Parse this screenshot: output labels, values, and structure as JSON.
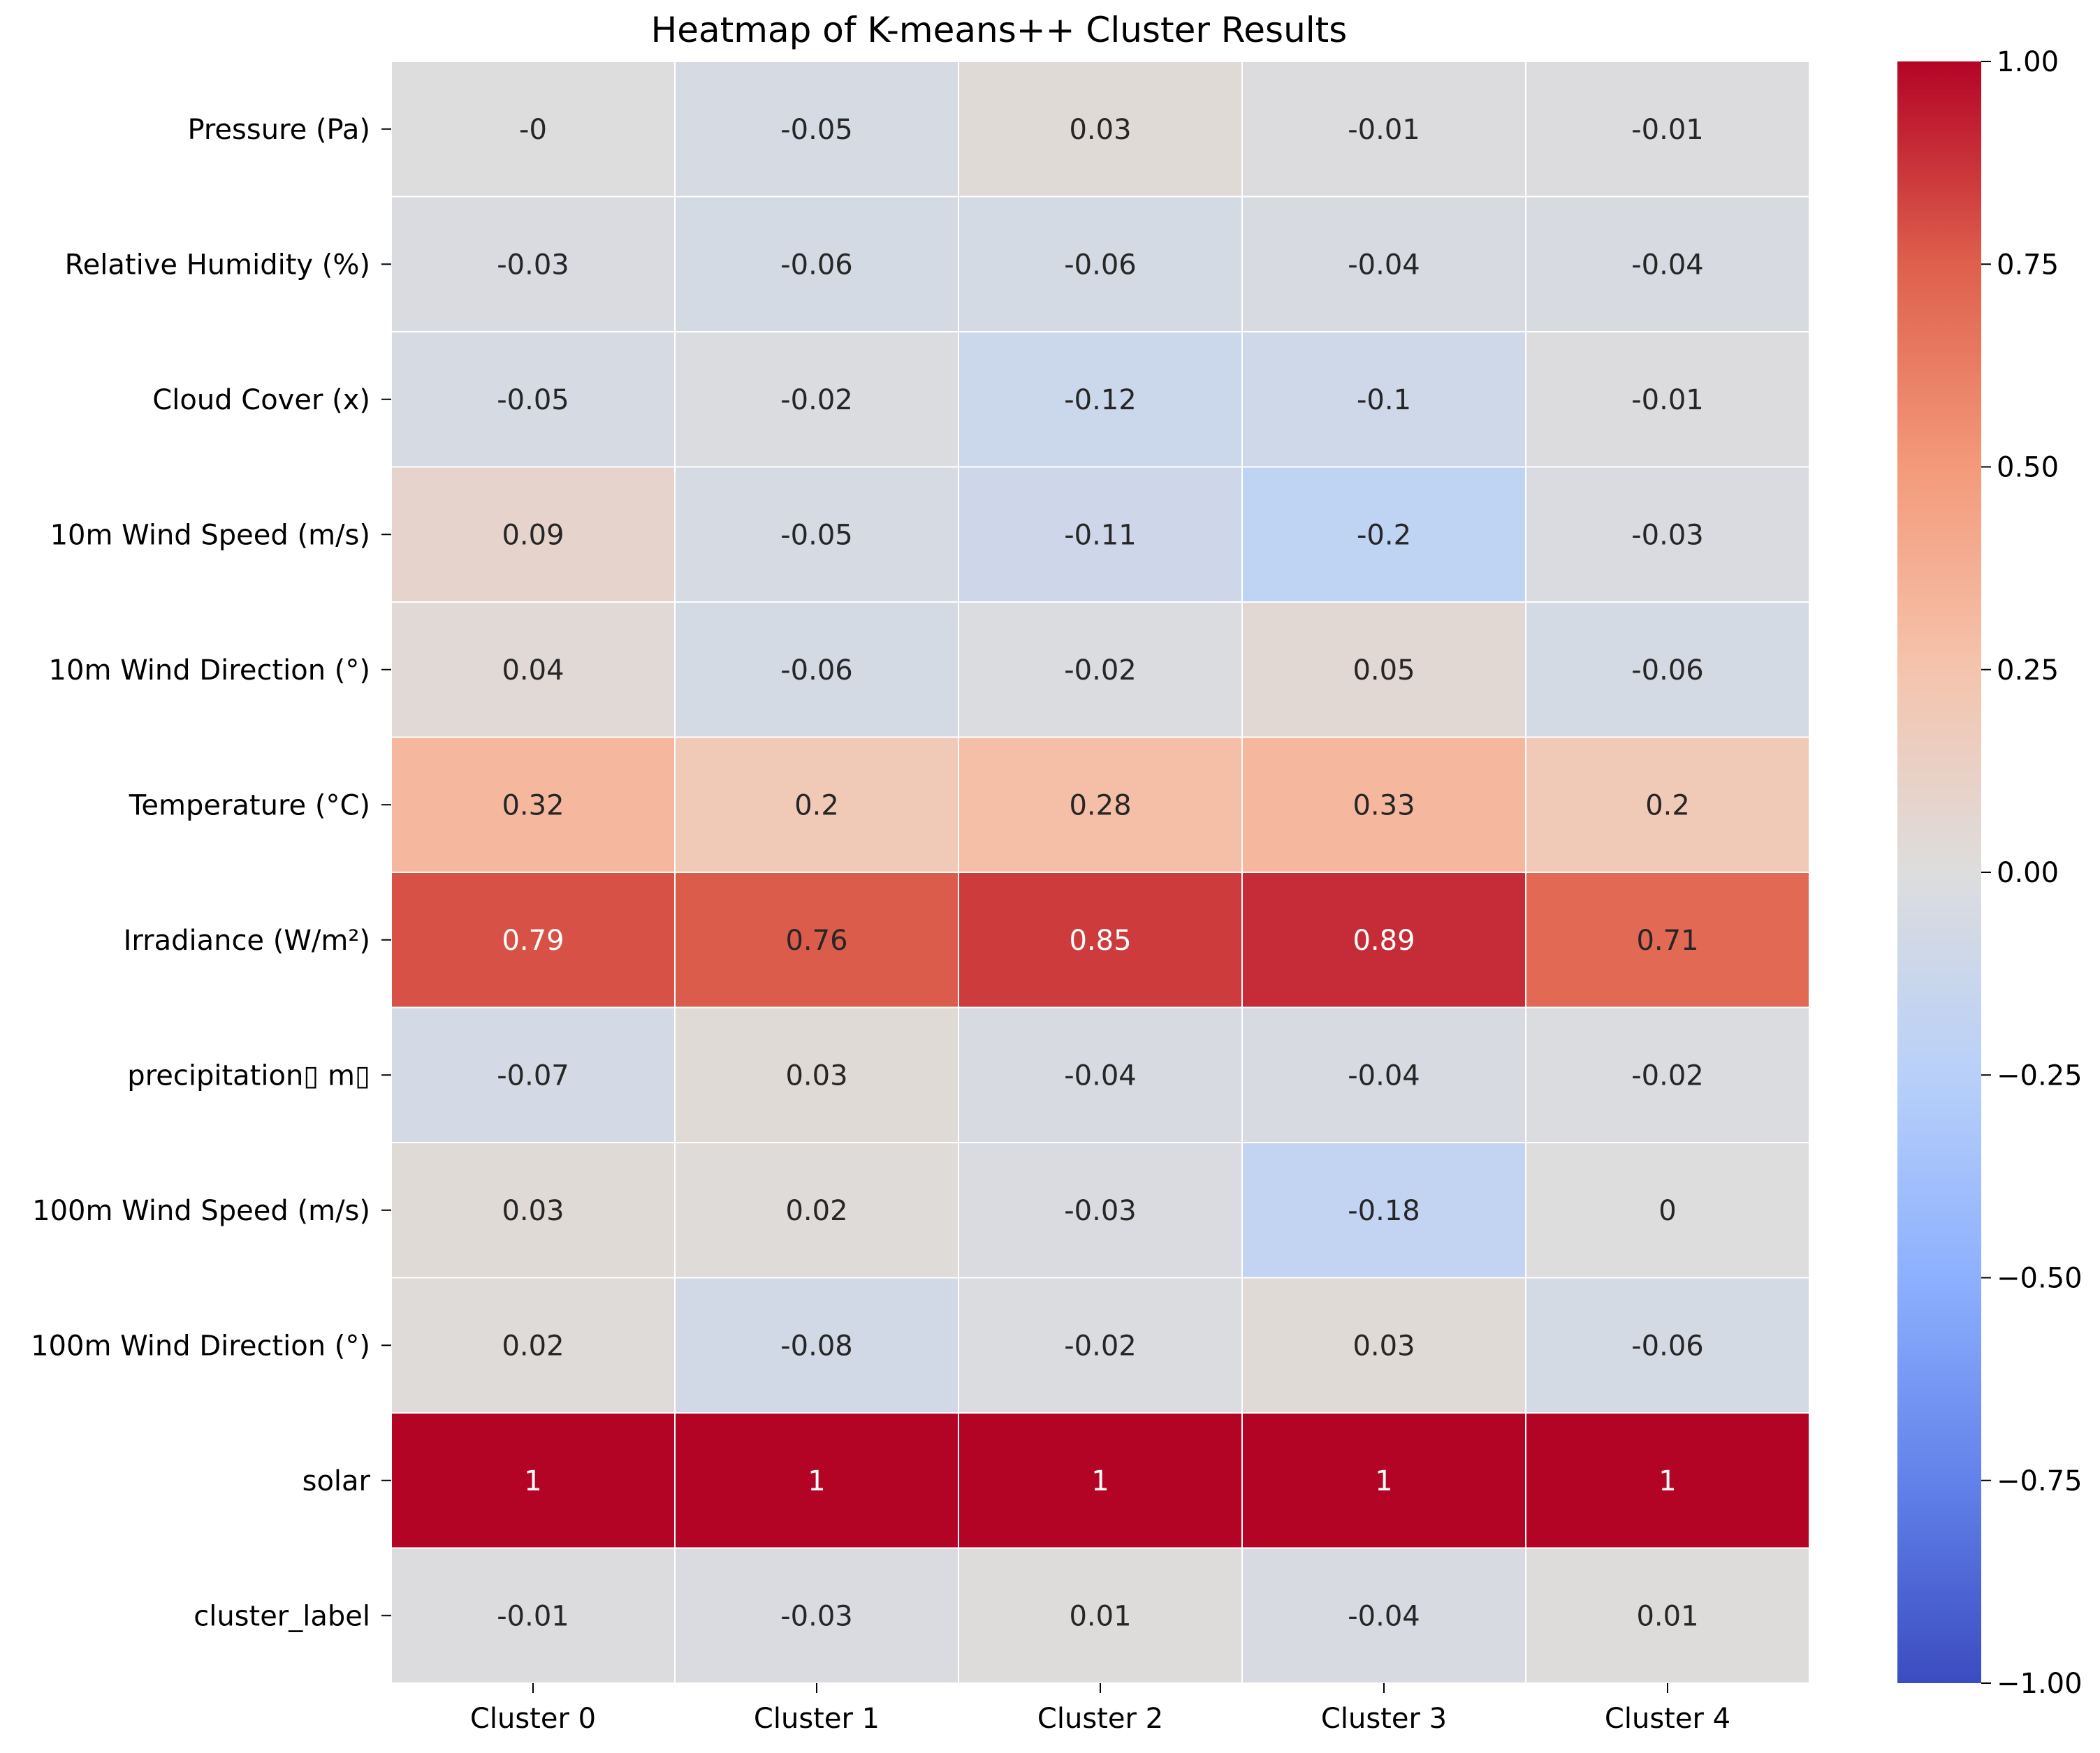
{
  "chart_data": {
    "type": "heatmap",
    "title": "Heatmap of K-means++ Cluster Results",
    "columns": [
      "Cluster 0",
      "Cluster 1",
      "Cluster 2",
      "Cluster 3",
      "Cluster 4"
    ],
    "rows": [
      "Pressure (Pa)",
      "Relative Humidity (%)",
      "Cloud Cover (x)",
      "10m Wind Speed (m/s)",
      "10m Wind Direction (°)",
      "Temperature (°C)",
      "Irradiance (W/m²)",
      "precipitation▯ m▯",
      "100m Wind Speed (m/s)",
      "100m Wind Direction (°)",
      "solar",
      "cluster_label"
    ],
    "values": [
      [
        -0.0,
        -0.05,
        0.03,
        -0.01,
        -0.01
      ],
      [
        -0.03,
        -0.06,
        -0.06,
        -0.04,
        -0.04
      ],
      [
        -0.05,
        -0.02,
        -0.12,
        -0.1,
        -0.01
      ],
      [
        0.09,
        -0.05,
        -0.11,
        -0.2,
        -0.03
      ],
      [
        0.04,
        -0.06,
        -0.02,
        0.05,
        -0.06
      ],
      [
        0.32,
        0.2,
        0.28,
        0.33,
        0.2
      ],
      [
        0.79,
        0.76,
        0.85,
        0.89,
        0.71
      ],
      [
        -0.07,
        0.03,
        -0.04,
        -0.04,
        -0.02
      ],
      [
        0.03,
        0.02,
        -0.03,
        -0.18,
        0
      ],
      [
        0.02,
        -0.08,
        -0.02,
        0.03,
        -0.06
      ],
      [
        1,
        1,
        1,
        1,
        1
      ],
      [
        -0.01,
        -0.03,
        0.01,
        -0.04,
        0.01
      ]
    ],
    "value_labels": [
      [
        "-0",
        "-0.05",
        "0.03",
        "-0.01",
        "-0.01"
      ],
      [
        "-0.03",
        "-0.06",
        "-0.06",
        "-0.04",
        "-0.04"
      ],
      [
        "-0.05",
        "-0.02",
        "-0.12",
        "-0.1",
        "-0.01"
      ],
      [
        "0.09",
        "-0.05",
        "-0.11",
        "-0.2",
        "-0.03"
      ],
      [
        "0.04",
        "-0.06",
        "-0.02",
        "0.05",
        "-0.06"
      ],
      [
        "0.32",
        "0.2",
        "0.28",
        "0.33",
        "0.2"
      ],
      [
        "0.79",
        "0.76",
        "0.85",
        "0.89",
        "0.71"
      ],
      [
        "-0.07",
        "0.03",
        "-0.04",
        "-0.04",
        "-0.02"
      ],
      [
        "0.03",
        "0.02",
        "-0.03",
        "-0.18",
        "0"
      ],
      [
        "0.02",
        "-0.08",
        "-0.02",
        "0.03",
        "-0.06"
      ],
      [
        "1",
        "1",
        "1",
        "1",
        "1"
      ],
      [
        "-0.01",
        "-0.03",
        "0.01",
        "-0.04",
        "0.01"
      ]
    ],
    "colormap": "coolwarm",
    "vmin": -1.0,
    "vmax": 1.0,
    "colorbar_ticks": [
      1.0,
      0.75,
      0.5,
      0.25,
      0.0,
      -0.25,
      -0.5,
      -0.75,
      -1.0
    ],
    "colorbar_tick_labels": [
      "1.00",
      "0.75",
      "0.50",
      "0.25",
      "0.00",
      "−0.25",
      "−0.50",
      "−0.75",
      "−1.00"
    ],
    "colors": {
      "cmap_low": "#3b4cc0",
      "cmap_mid": "#dddddd",
      "cmap_high": "#b40426",
      "grid_line": "#ffffff",
      "dark_text": "#262626",
      "light_text": "#ffffff"
    }
  }
}
